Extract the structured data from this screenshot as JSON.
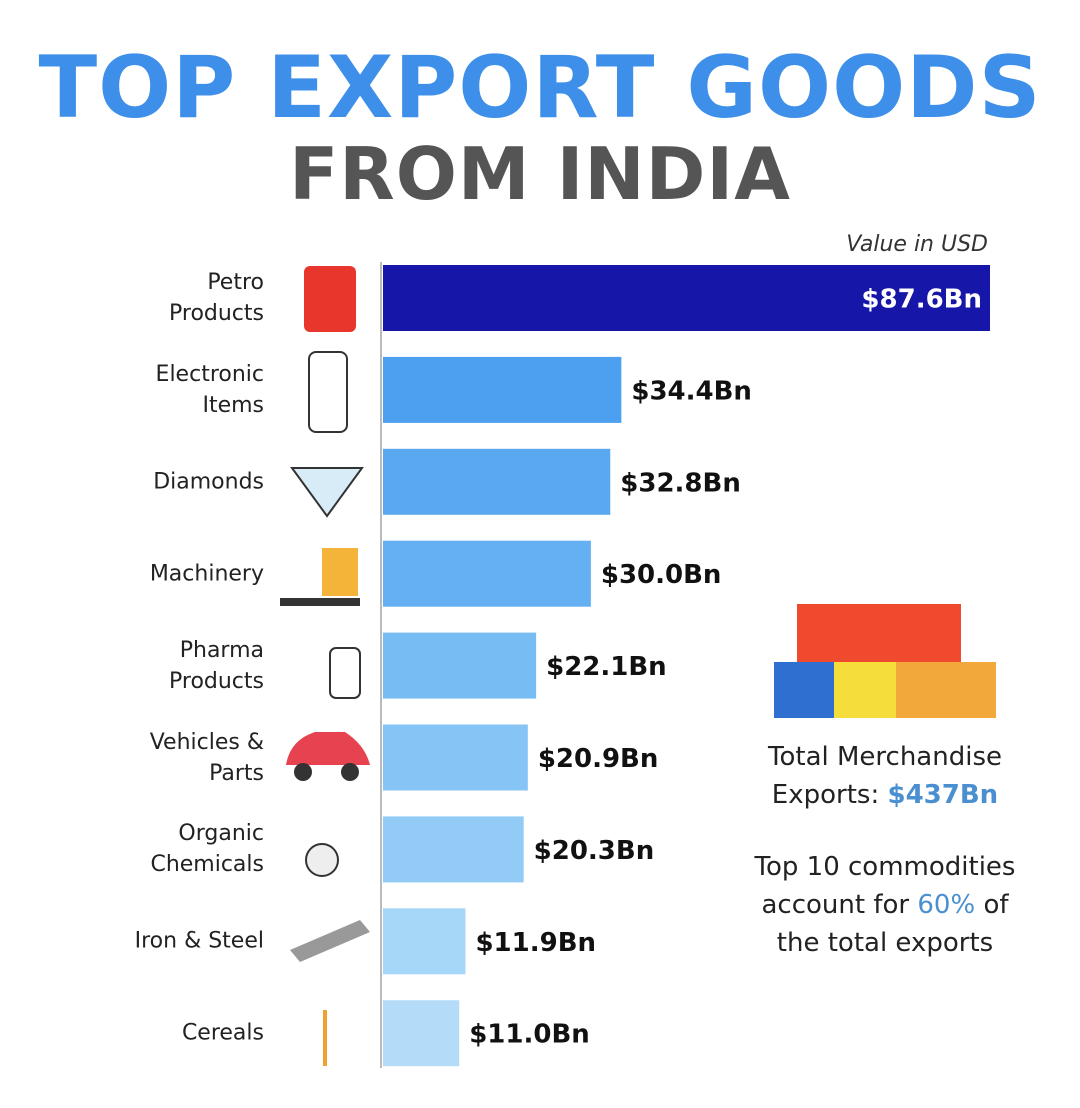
{
  "chart_data": {
    "type": "bar",
    "orientation": "horizontal",
    "title": "TOP EXPORT GOODS",
    "subtitle": "FROM INDIA",
    "unit_note": "Value in USD",
    "categories": [
      "Petro Products",
      "Electronic Items",
      "Diamonds",
      "Machinery",
      "Pharma Products",
      "Vehicles & Parts",
      "Organic Chemicals",
      "Iron & Steel",
      "Cereals"
    ],
    "values": [
      87.6,
      34.4,
      32.8,
      30.0,
      22.1,
      20.9,
      20.3,
      11.9,
      11.0
    ],
    "value_labels": [
      "$87.6Bn",
      "$34.4Bn",
      "$32.8Bn",
      "$30.0Bn",
      "$22.1Bn",
      "$20.9Bn",
      "$20.3Bn",
      "$11.9Bn",
      "$11.0Bn"
    ],
    "colors": [
      "#1616a8",
      "#4d9fef",
      "#5aa8f0",
      "#64b0f2",
      "#78bcf4",
      "#86c4f5",
      "#92cbf6",
      "#a6d6f8",
      "#b4dcf9"
    ],
    "notes": [
      [
        "Total Merchandise Exports:",
        "$437Bn"
      ],
      [
        "Top 10 commodities account for",
        "60%",
        "of the total exports"
      ]
    ]
  }
}
